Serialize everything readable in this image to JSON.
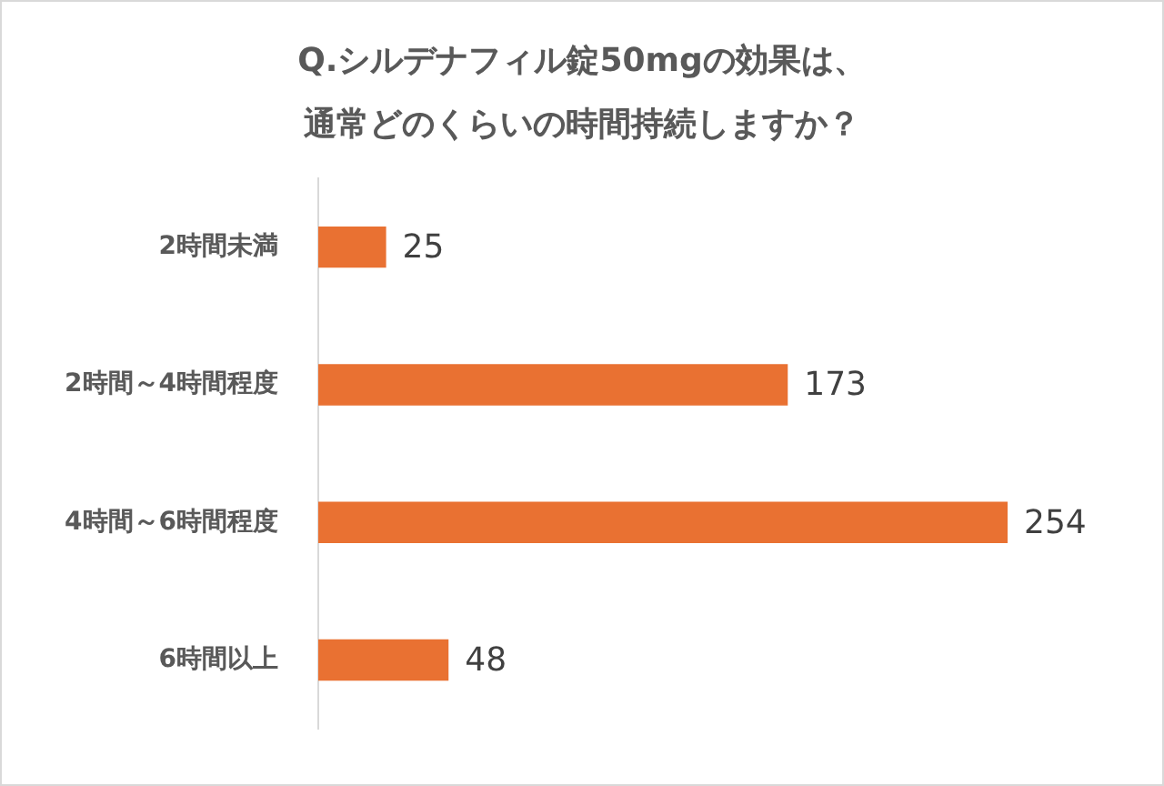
{
  "chart_data": {
    "type": "bar",
    "orientation": "horizontal",
    "title": "Q.シルデナフィル錠50mgの効果は、通常どのくらいの時間持続しますか？",
    "categories": [
      "2時間未満",
      "2時間～4時間程度",
      "4時間～6時間程度",
      "6時間以上"
    ],
    "values": [
      25,
      173,
      254,
      48
    ],
    "color": "#e97132",
    "data_labels": true
  }
}
